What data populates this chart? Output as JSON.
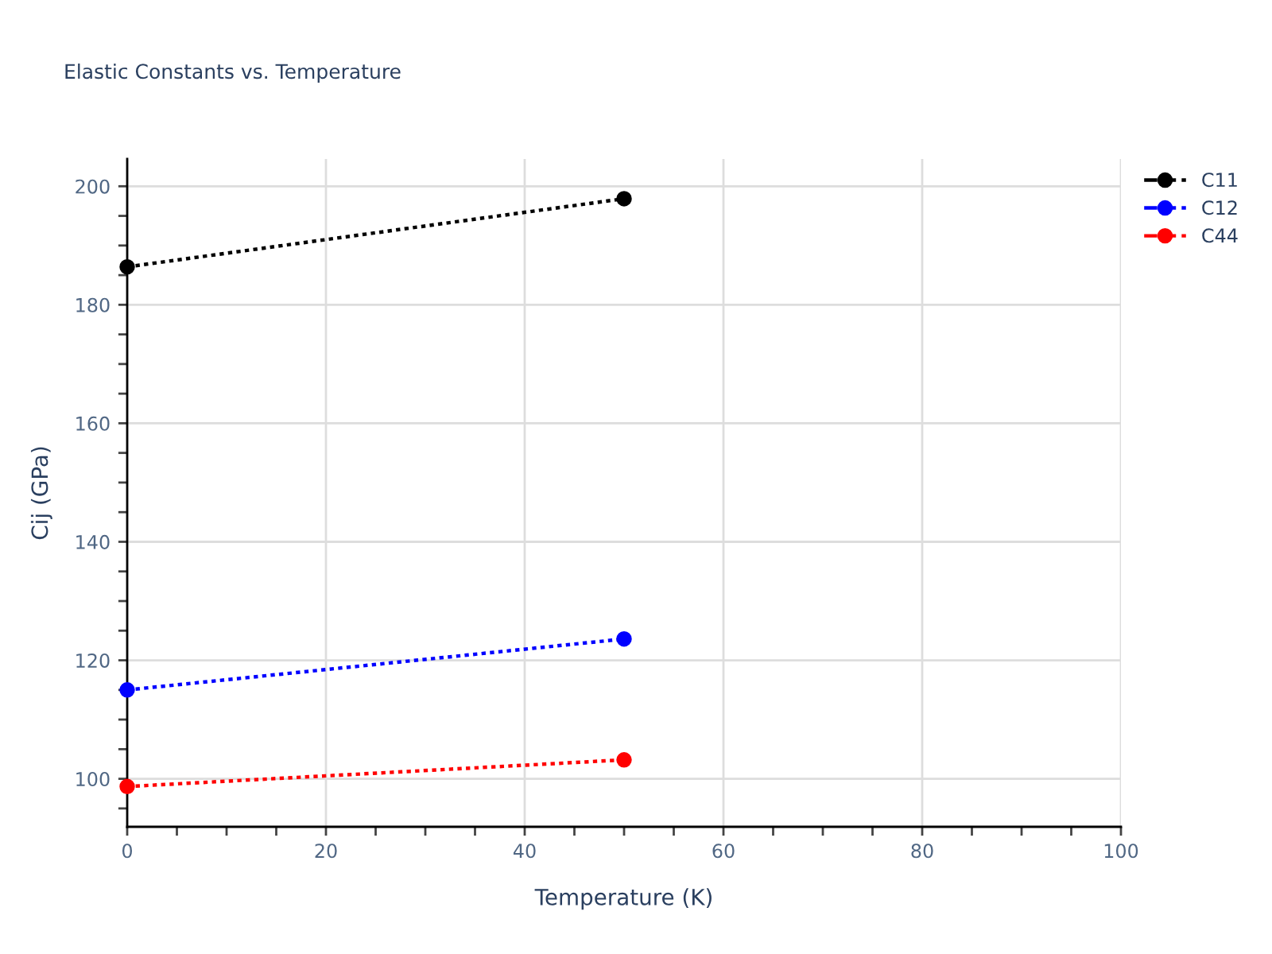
{
  "chart_data": {
    "type": "line",
    "title": "Elastic Constants vs. Temperature",
    "xlabel": "Temperature (K)",
    "ylabel": "Cij (GPa)",
    "x": [
      0,
      50
    ],
    "series": [
      {
        "name": "C11",
        "color": "#000000",
        "values": [
          186.4,
          197.9
        ]
      },
      {
        "name": "C12",
        "color": "#0000ff",
        "values": [
          115.0,
          123.6
        ]
      },
      {
        "name": "C44",
        "color": "#ff0000",
        "values": [
          98.7,
          103.2
        ]
      }
    ],
    "xlim": [
      0,
      100
    ],
    "ylim": [
      91.9,
      204.6
    ],
    "xticks": [
      0,
      {
        "value": 5,
        "label": null
      },
      {
        "value": 10,
        "label": null
      },
      {
        "value": 15,
        "label": null
      },
      20,
      {
        "value": 25,
        "label": null
      },
      {
        "value": 30,
        "label": null
      },
      {
        "value": 35,
        "label": null
      },
      40,
      {
        "value": 45,
        "label": null
      },
      {
        "value": 50,
        "label": null
      },
      {
        "value": 55,
        "label": null
      },
      60,
      {
        "value": 65,
        "label": null
      },
      {
        "value": 70,
        "label": null
      },
      {
        "value": 75,
        "label": null
      },
      80,
      {
        "value": 85,
        "label": null
      },
      {
        "value": 90,
        "label": null
      },
      {
        "value": 95,
        "label": null
      },
      100
    ],
    "yticks": [
      {
        "value": 95,
        "label": null
      },
      100,
      {
        "value": 105,
        "label": null
      },
      {
        "value": 110,
        "label": null
      },
      {
        "value": 115,
        "label": null
      },
      120,
      {
        "value": 125,
        "label": null
      },
      {
        "value": 130,
        "label": null
      },
      {
        "value": 135,
        "label": null
      },
      140,
      {
        "value": 145,
        "label": null
      },
      {
        "value": 150,
        "label": null
      },
      {
        "value": 155,
        "label": null
      },
      160,
      {
        "value": 165,
        "label": null
      },
      {
        "value": 170,
        "label": null
      },
      {
        "value": 175,
        "label": null
      },
      180,
      {
        "value": 185,
        "label": null
      },
      {
        "value": 190,
        "label": null
      },
      {
        "value": 195,
        "label": null
      },
      200
    ],
    "grid": true,
    "legend": "top right",
    "marker": "circle",
    "line_style": "dotted"
  }
}
